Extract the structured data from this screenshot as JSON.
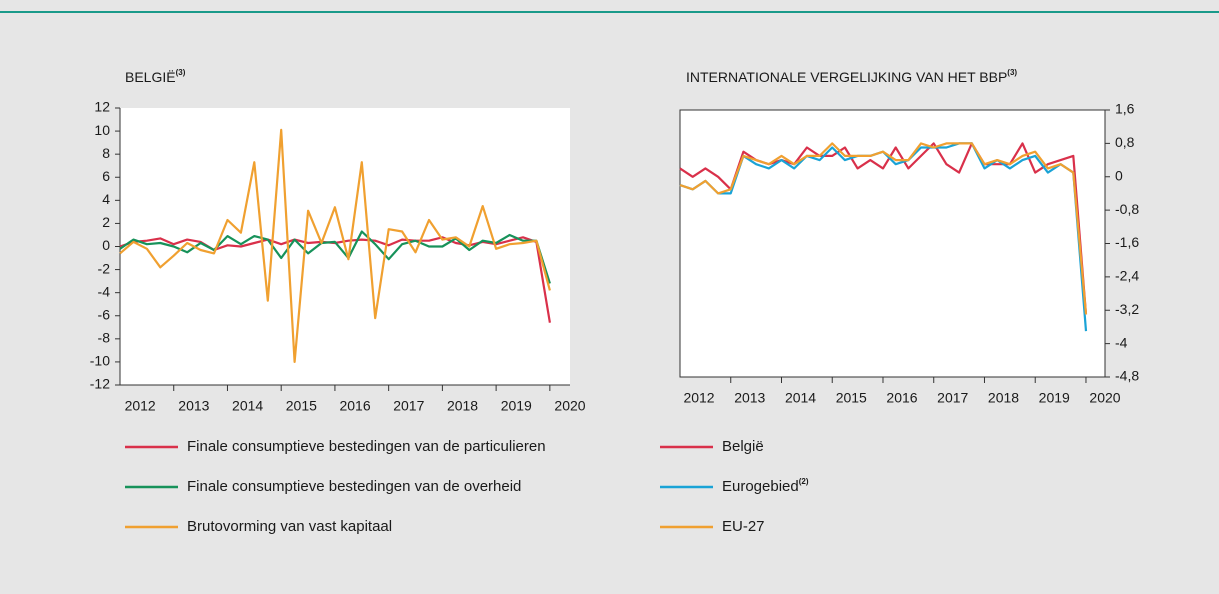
{
  "chart_data": [
    {
      "type": "line",
      "title": "BELGIË",
      "title_sup": "(3)",
      "categories": [
        "2012",
        null,
        null,
        null,
        "2013",
        null,
        null,
        null,
        "2014",
        null,
        null,
        null,
        "2015",
        null,
        null,
        null,
        "2016",
        null,
        null,
        null,
        "2017",
        null,
        null,
        null,
        "2018",
        null,
        null,
        null,
        "2019",
        null,
        null,
        null,
        "2020"
      ],
      "series": [
        {
          "name": "Finale consumptieve bestedingen van de particulieren",
          "color": "#d9304a",
          "values": [
            0,
            0.4,
            0.5,
            0.7,
            0.2,
            0.6,
            0.4,
            -0.3,
            0.1,
            0.0,
            0.3,
            0.6,
            0.2,
            0.6,
            0.3,
            0.4,
            0.3,
            0.5,
            0.6,
            0.5,
            0.1,
            0.6,
            0.5,
            0.5,
            0.8,
            0.3,
            0.1,
            0.4,
            0.2,
            0.5,
            0.8,
            0.4,
            -6.6
          ]
        },
        {
          "name": "Finale consumptieve bestedingen van de overheid",
          "color": "#17925a",
          "values": [
            -0.2,
            0.6,
            0.2,
            0.3,
            0,
            -0.5,
            0.3,
            -0.3,
            0.9,
            0.2,
            0.9,
            0.6,
            -1.0,
            0.6,
            -0.6,
            0.3,
            0.4,
            -1.0,
            1.3,
            0.2,
            -1.1,
            0.2,
            0.5,
            0.0,
            0.0,
            0.7,
            -0.3,
            0.5,
            0.3,
            1.0,
            0.5,
            0.5,
            -3.2
          ]
        },
        {
          "name": "Brutovorming van vast kapitaal",
          "color": "#f0a030",
          "values": [
            -0.6,
            0.4,
            -0.2,
            -1.8,
            -0.8,
            0.3,
            -0.3,
            -0.6,
            2.3,
            1.2,
            7.3,
            -4.7,
            10.1,
            -10.0,
            3.1,
            0.3,
            3.4,
            -1.1,
            7.3,
            -6.2,
            1.5,
            1.3,
            -0.5,
            2.3,
            0.6,
            0.8,
            0.0,
            3.5,
            -0.2,
            0.2,
            0.3,
            0.5,
            -3.8
          ]
        }
      ],
      "ylim": [
        -12,
        12
      ],
      "yticks": [
        -12,
        -10,
        -8,
        -6,
        -4,
        -2,
        0,
        2,
        4,
        6,
        8,
        10,
        12
      ],
      "y_axis": "left"
    },
    {
      "type": "line",
      "title": "INTERNATIONALE VERGELIJKING VAN HET BBP",
      "title_sup": "(3)",
      "categories": [
        "2012",
        null,
        null,
        null,
        "2013",
        null,
        null,
        null,
        "2014",
        null,
        null,
        null,
        "2015",
        null,
        null,
        null,
        "2016",
        null,
        null,
        null,
        "2017",
        null,
        null,
        null,
        "2018",
        null,
        null,
        null,
        "2019",
        null,
        null,
        null,
        "2020"
      ],
      "series": [
        {
          "name": "België",
          "color": "#d9304a",
          "values": [
            0.2,
            0.0,
            0.2,
            0.0,
            -0.3,
            0.6,
            0.4,
            0.3,
            0.4,
            0.3,
            0.7,
            0.5,
            0.5,
            0.7,
            0.2,
            0.4,
            0.2,
            0.7,
            0.2,
            0.5,
            0.8,
            0.3,
            0.1,
            0.8,
            0.3,
            0.3,
            0.3,
            0.8,
            0.1,
            0.3,
            0.4,
            0.5,
            -3.3
          ]
        },
        {
          "name": "Eurogebied",
          "name_sup": "(2)",
          "color": "#1aa3d6",
          "values": [
            -0.2,
            -0.3,
            -0.1,
            -0.4,
            -0.4,
            0.5,
            0.3,
            0.2,
            0.4,
            0.2,
            0.5,
            0.4,
            0.7,
            0.4,
            0.5,
            0.5,
            0.6,
            0.3,
            0.4,
            0.7,
            0.7,
            0.7,
            0.8,
            0.8,
            0.2,
            0.4,
            0.2,
            0.4,
            0.5,
            0.1,
            0.3,
            0.1,
            -3.7
          ]
        },
        {
          "name": "EU-27",
          "color": "#f0a030",
          "values": [
            -0.2,
            -0.3,
            -0.1,
            -0.4,
            -0.3,
            0.5,
            0.4,
            0.3,
            0.5,
            0.3,
            0.5,
            0.5,
            0.8,
            0.5,
            0.5,
            0.5,
            0.6,
            0.4,
            0.4,
            0.8,
            0.7,
            0.8,
            0.8,
            0.8,
            0.3,
            0.4,
            0.3,
            0.5,
            0.6,
            0.2,
            0.3,
            0.1,
            -3.3
          ]
        }
      ],
      "ylim": [
        -4.8,
        1.6
      ],
      "yticks": [
        {
          "value": -4.8,
          "label": "-4,8"
        },
        -4,
        {
          "value": -3.2,
          "label": "-3,2"
        },
        {
          "value": -2.4,
          "label": "-2,4"
        },
        {
          "value": -1.6,
          "label": "-1,6"
        },
        {
          "value": -0.8,
          "label": "-0,8"
        },
        0,
        {
          "value": 0.8,
          "label": "0,8"
        },
        {
          "value": 1.6,
          "label": "1,6"
        }
      ],
      "y_axis": "right"
    }
  ]
}
